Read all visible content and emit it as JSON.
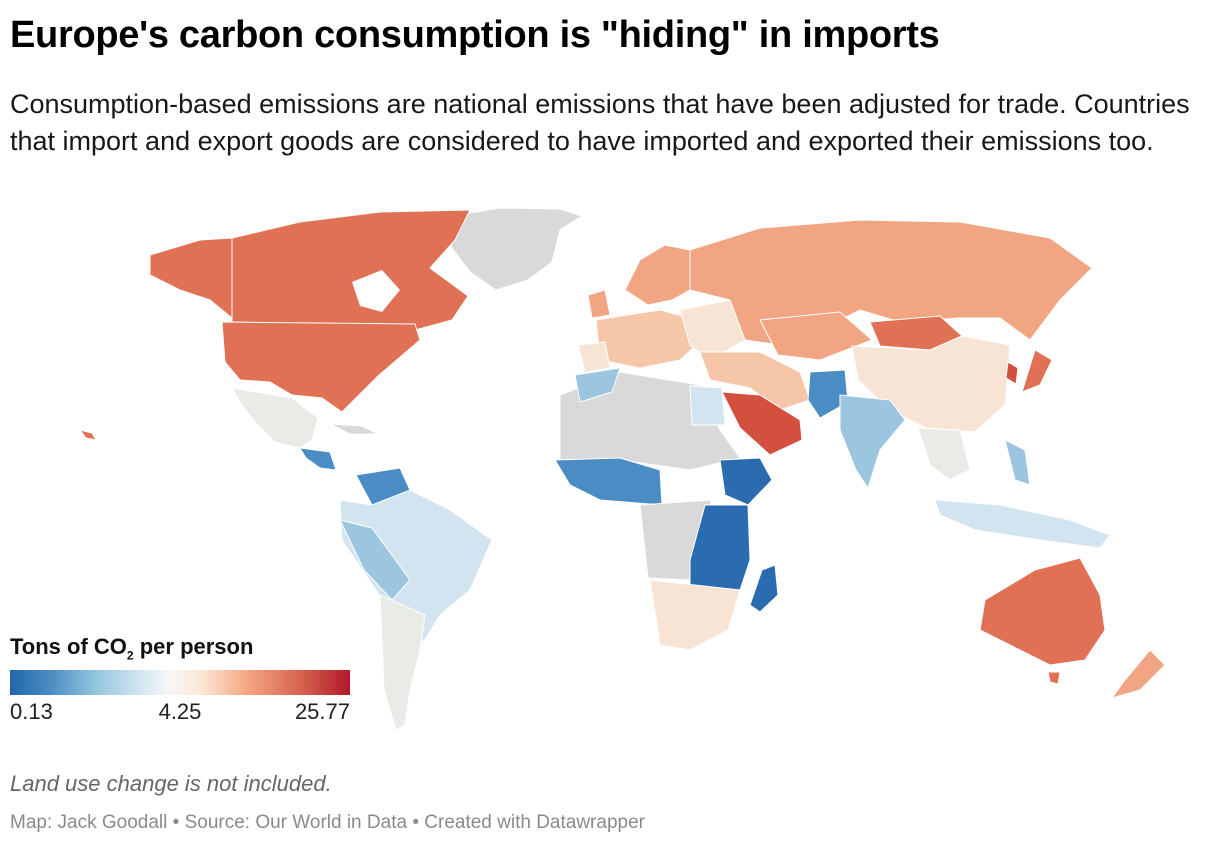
{
  "header": {
    "title": "Europe's carbon consumption is \"hiding\" in imports",
    "subtitle": "Consumption-based emissions are national emissions that have been adjusted for trade. Countries that import and export goods are considered to have imported and exported their emissions too."
  },
  "legend": {
    "title_prefix": "Tons of CO",
    "title_subscript": "2",
    "title_suffix": " per person",
    "min_label": "0.13",
    "mid_label": "4.25",
    "max_label": "25.77",
    "colors": [
      "#2166ac",
      "#92c5de",
      "#f7f7f7",
      "#f4a582",
      "#b2182b"
    ]
  },
  "note": "Land use change is not included.",
  "footer": {
    "credit": "Map: Jack Goodall",
    "source": "Source: Our World in Data",
    "tool": "Created with Datawrapper",
    "separator": " • "
  },
  "map_colors": {
    "no_data": "#d9d9d9",
    "very_low": "#2b6cb0",
    "low": "#4a8cc4",
    "low_mid": "#9cc6e0",
    "mid_low": "#d2e4ef",
    "mid": "#e9ece6",
    "mid_high": "#f8e4d4",
    "high_light": "#f6c6a8",
    "high": "#f2a582",
    "very_high": "#e07155",
    "extreme": "#d4503e"
  }
}
